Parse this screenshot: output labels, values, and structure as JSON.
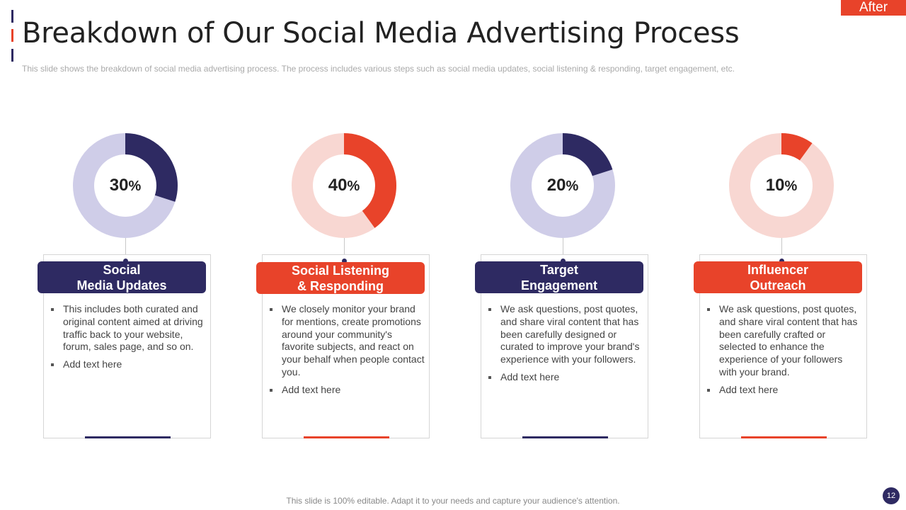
{
  "tag": "After",
  "title": "Breakdown of Our Social Media Advertising Process",
  "subtitle": "This slide shows the breakdown  of social media advertising  process. The  process includes various  steps such as social media updates, social listening & responding,  target engagement,  etc.",
  "colors": {
    "navy": "#2e2a62",
    "red": "#e8432a",
    "navy_light": "#cfcde8",
    "red_light": "#f8d7d2"
  },
  "steps": [
    {
      "percent": 30,
      "percent_num": "30",
      "percent_sym": "%",
      "heading_line1": "Social",
      "heading_line2": "Media Updates",
      "theme": "navy",
      "bullets": [
        "This includes both curated and original content aimed at driving traffic back to your website, forum, sales page, and so on.",
        "Add text here"
      ]
    },
    {
      "percent": 40,
      "percent_num": "40",
      "percent_sym": "%",
      "heading_line1": "Social Listening",
      "heading_line2": "& Responding",
      "theme": "red",
      "bullets": [
        "We closely monitor your brand for mentions, create promotions around your community's favorite subjects, and react on your behalf when people contact you.",
        "Add text here"
      ]
    },
    {
      "percent": 20,
      "percent_num": "20",
      "percent_sym": "%",
      "heading_line1": "Target",
      "heading_line2": "Engagement",
      "theme": "navy",
      "bullets": [
        "We ask questions, post quotes, and share viral content that has been carefully designed or curated to improve your brand's experience with your followers.",
        "Add text here"
      ]
    },
    {
      "percent": 10,
      "percent_num": "10",
      "percent_sym": "%",
      "heading_line1": "Influencer",
      "heading_line2": "Outreach",
      "theme": "red",
      "bullets": [
        "We ask questions, post quotes, and share viral content that has been carefully crafted or selected to enhance the experience of your followers with your brand.",
        "Add text here"
      ]
    }
  ],
  "footer": "This slide is 100% editable. Adapt it to your needs and capture your audience's attention.",
  "page_number": "12"
}
